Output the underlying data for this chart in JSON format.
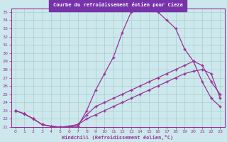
{
  "title": "Courbe du refroidissement éolien pour Cieza",
  "xlabel": "Windchill (Refroidissement éolien,°C)",
  "bg_color": "#cce8ec",
  "grid_color": "#aacccc",
  "line_color": "#993399",
  "title_bg": "#7b4a8c",
  "xlim": [
    -0.5,
    23.5
  ],
  "ylim": [
    21,
    35.4
  ],
  "xticks": [
    0,
    1,
    2,
    3,
    4,
    5,
    6,
    7,
    8,
    9,
    10,
    11,
    12,
    13,
    14,
    15,
    16,
    17,
    18,
    19,
    20,
    21,
    22,
    23
  ],
  "yticks": [
    21,
    22,
    23,
    24,
    25,
    26,
    27,
    28,
    29,
    30,
    31,
    32,
    33,
    34,
    35
  ],
  "line1_x": [
    0,
    1,
    2,
    3,
    4,
    5,
    6,
    7,
    8,
    9,
    10,
    11,
    12,
    13,
    14,
    15,
    16,
    17,
    18,
    19,
    20,
    21,
    22,
    23
  ],
  "line1_y": [
    23.0,
    22.6,
    22.0,
    21.3,
    21.1,
    21.0,
    21.0,
    21.1,
    23.0,
    25.5,
    27.5,
    29.5,
    32.5,
    35.0,
    35.3,
    35.3,
    35.0,
    34.0,
    33.0,
    30.5,
    29.0,
    26.5,
    24.5,
    23.5
  ],
  "line2_x": [
    0,
    1,
    2,
    3,
    4,
    5,
    6,
    7,
    8,
    9,
    10,
    11,
    12,
    13,
    14,
    15,
    16,
    17,
    18,
    19,
    20,
    21,
    22,
    23
  ],
  "line2_y": [
    23.0,
    22.6,
    22.0,
    21.3,
    21.1,
    21.0,
    21.1,
    21.3,
    22.5,
    23.5,
    24.0,
    24.5,
    25.0,
    25.5,
    26.0,
    26.5,
    27.0,
    27.5,
    28.0,
    28.5,
    29.0,
    28.5,
    26.5,
    25.0
  ],
  "line3_x": [
    0,
    1,
    2,
    3,
    4,
    5,
    6,
    7,
    8,
    9,
    10,
    11,
    12,
    13,
    14,
    15,
    16,
    17,
    18,
    19,
    20,
    21,
    22,
    23
  ],
  "line3_y": [
    23.0,
    22.6,
    22.0,
    21.3,
    21.1,
    21.0,
    21.1,
    21.3,
    22.0,
    22.5,
    23.0,
    23.5,
    24.0,
    24.5,
    25.0,
    25.5,
    26.0,
    26.5,
    27.0,
    27.5,
    27.8,
    28.0,
    27.5,
    24.5
  ]
}
